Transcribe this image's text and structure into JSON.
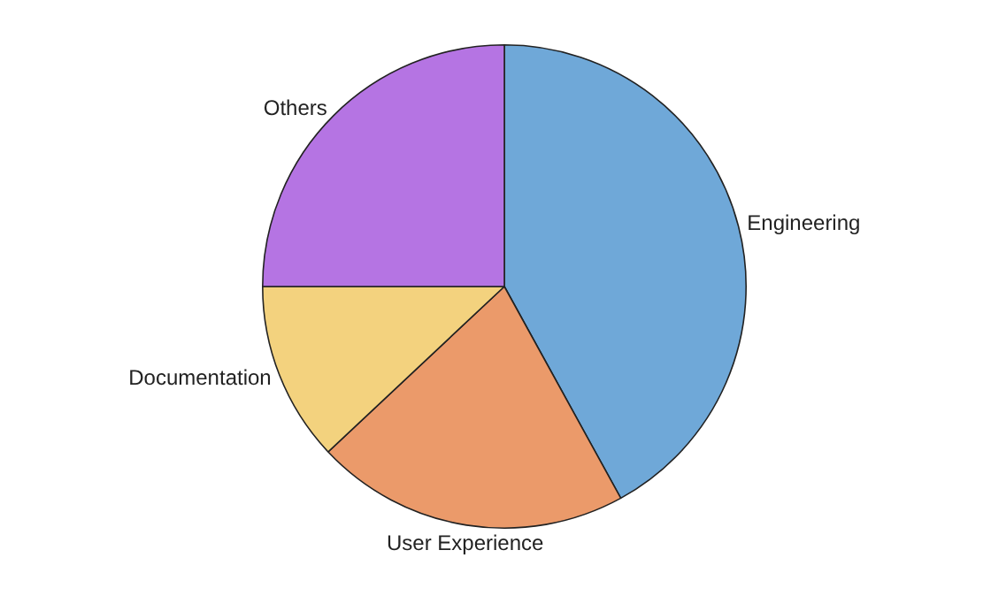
{
  "chart_data": {
    "type": "pie",
    "categories": [
      "Engineering",
      "User Experience",
      "Documentation",
      "Others"
    ],
    "values": [
      42,
      21,
      12,
      25
    ],
    "colors": [
      "#6fa8d8",
      "#eb9a6a",
      "#f3d27e",
      "#b574e3"
    ]
  }
}
